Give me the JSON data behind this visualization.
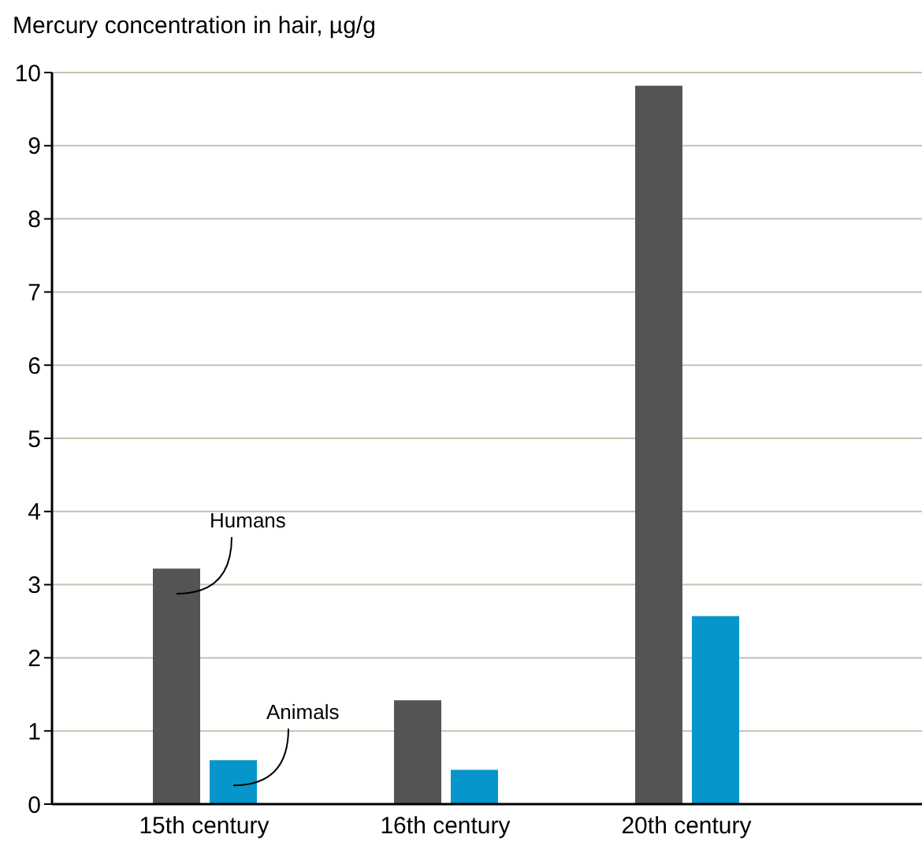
{
  "chart_data": {
    "type": "bar",
    "title": "Mercury concentration in hair, µg/g",
    "categories": [
      "15th century",
      "16th century",
      "20th century"
    ],
    "series": [
      {
        "name": "Humans",
        "color": "#545456",
        "values": [
          3.22,
          1.42,
          9.82
        ]
      },
      {
        "name": "Animals",
        "color": "#0796cb",
        "values": [
          0.6,
          0.47,
          2.57
        ]
      }
    ],
    "ylim": [
      0,
      10
    ],
    "yticks": [
      0,
      1,
      2,
      3,
      4,
      5,
      6,
      7,
      8,
      9,
      10
    ],
    "grid": "y",
    "legend": false
  }
}
